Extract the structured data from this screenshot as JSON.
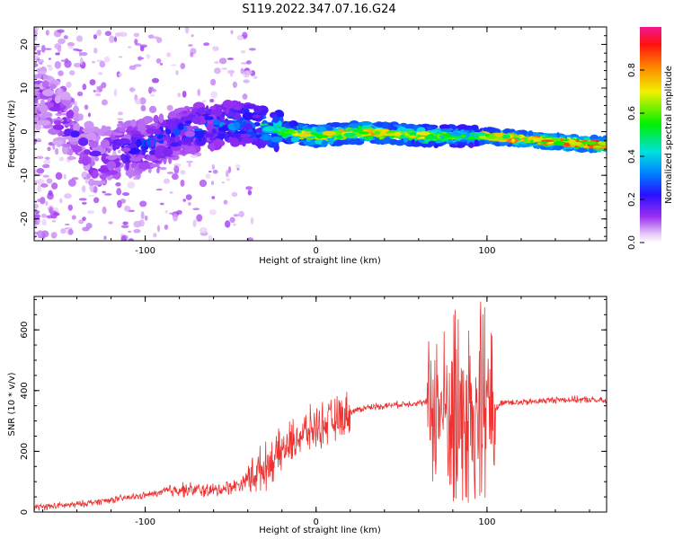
{
  "figure": {
    "title": "S119.2022.347.07.16.G24"
  },
  "chart_data": [
    {
      "type": "heatmap",
      "xlabel": "Height of straight line (km)",
      "ylabel": "Frequency (Hz)",
      "xlim": [
        -165,
        170
      ],
      "ylim": [
        -25,
        24
      ],
      "xticks": [
        -100,
        0,
        100
      ],
      "yticks": [
        -20,
        -10,
        0,
        10,
        20
      ],
      "colorbar": {
        "label": "Normalized spectral amplitude",
        "range": [
          0,
          1
        ],
        "ticks": [
          "0.0",
          "0.2",
          "0.4",
          "0.6",
          "0.8"
        ],
        "colormap": "white-purple-blue-cyan-green-yellow-red-magenta"
      },
      "ridge": {
        "description_points_x": [
          -160,
          -130,
          -100,
          -70,
          -40,
          -20,
          0,
          30,
          60,
          90,
          100,
          130,
          165
        ],
        "frequency_y": [
          8,
          -6,
          -3,
          1,
          2,
          0,
          -1,
          0,
          -1,
          -1,
          -1,
          -2,
          -3
        ],
        "amplitude": [
          0.15,
          0.2,
          0.25,
          0.3,
          0.4,
          0.6,
          0.75,
          0.8,
          0.7,
          0.55,
          0.75,
          0.85,
          0.9
        ]
      }
    },
    {
      "type": "line",
      "xlabel": "Height of straight line (km)",
      "ylabel": "SNR (10 * v/v)",
      "xlim": [
        -165,
        170
      ],
      "ylim": [
        0,
        710
      ],
      "xticks": [
        -100,
        0,
        100
      ],
      "yticks": [
        0,
        200,
        400,
        600
      ],
      "color": "#ee3333",
      "envelope": {
        "x": [
          -165,
          -140,
          -120,
          -100,
          -80,
          -60,
          -45,
          -30,
          -20,
          -10,
          0,
          10,
          20,
          30,
          40,
          50,
          60,
          65,
          70,
          80,
          90,
          95,
          100,
          105,
          110,
          120,
          140,
          160,
          170
        ],
        "y": [
          15,
          25,
          40,
          55,
          75,
          70,
          90,
          150,
          200,
          250,
          280,
          300,
          330,
          345,
          350,
          355,
          360,
          360,
          350,
          330,
          330,
          330,
          330,
          340,
          365,
          360,
          370,
          370,
          365
        ]
      }
    }
  ]
}
